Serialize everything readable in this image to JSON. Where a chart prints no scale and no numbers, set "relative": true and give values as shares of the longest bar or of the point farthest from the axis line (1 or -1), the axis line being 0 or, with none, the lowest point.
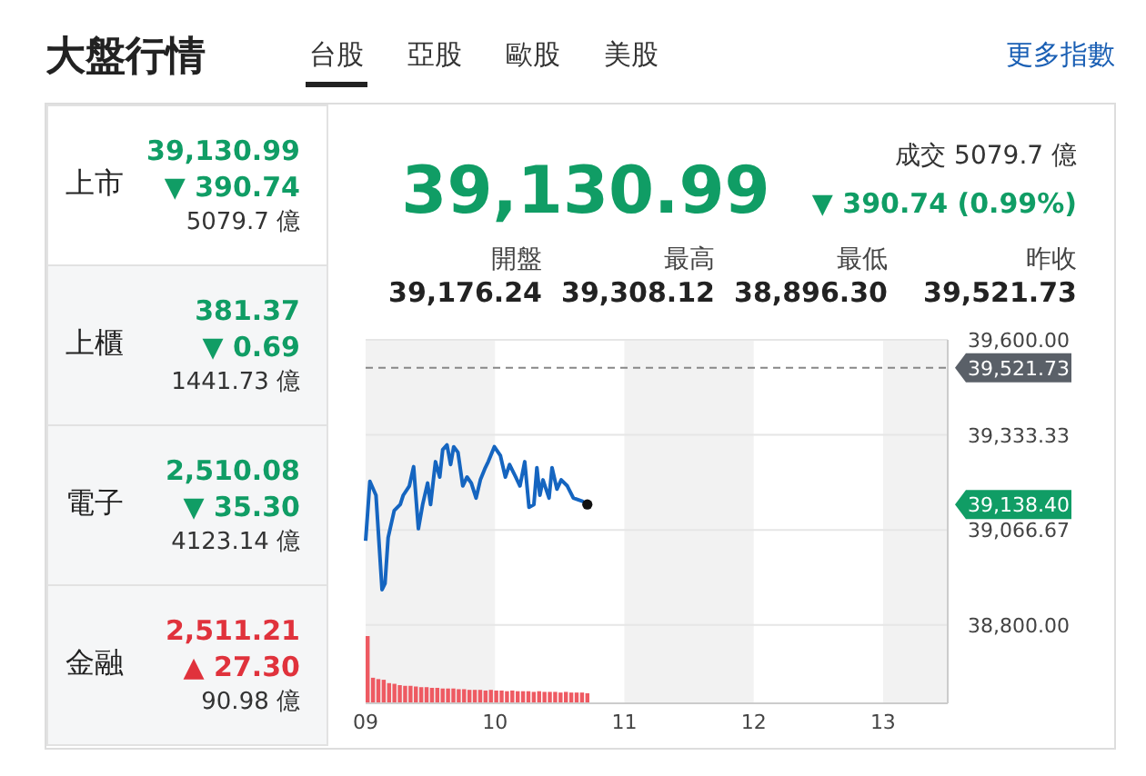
{
  "chart_data": [
    {
      "type": "other",
      "title": "大盤行情",
      "annotations": [
        "台股",
        "亞股",
        "歐股",
        "美股",
        "更多指數"
      ]
    },
    {
      "type": "other",
      "annotations": [
        "上市",
        "39,130.99",
        "▼ 390.74",
        "5079.7 億",
        "上櫃",
        "381.37",
        "▼ 0.69",
        "1441.73 億",
        "電子",
        "2,510.08",
        "▼ 35.30",
        "4123.14 億",
        "金融",
        "2,511.21",
        "▲ 27.30",
        "90.98 億"
      ],
      "colors": [
        "#109d65",
        "#109d65",
        "#109d65",
        "#e0323c"
      ]
    },
    {
      "type": "line",
      "title": "39,130.99",
      "annotations": [
        "成交 5079.7 億",
        "▼ 390.74 (0.99%)",
        "開盤",
        "39,176.24",
        "最高",
        "39,308.12",
        "最低",
        "38,896.30",
        "昨收",
        "39,521.73",
        "39,138.40"
      ],
      "x": [
        9.0,
        9.033,
        9.08,
        9.127,
        9.15,
        9.174,
        9.221,
        9.268,
        9.291,
        9.338,
        9.371,
        9.408,
        9.441,
        9.479,
        9.502,
        9.54,
        9.573,
        9.596,
        9.629,
        9.657,
        9.681,
        9.714,
        9.751,
        9.784,
        9.817,
        9.854,
        9.887,
        9.925,
        9.948,
        9.995,
        10.042,
        10.08,
        10.113,
        10.16,
        10.193,
        10.23,
        10.263,
        10.301,
        10.324,
        10.347,
        10.371,
        10.418,
        10.441,
        10.479,
        10.512,
        10.559,
        10.606,
        10.676,
        10.714
      ],
      "series": [
        {
          "color": "#1565c0",
          "values": [
            39036,
            39203,
            39164,
            38899,
            38916,
            39045,
            39121,
            39138,
            39164,
            39190,
            39244,
            39070,
            39138,
            39198,
            39138,
            39258,
            39215,
            39292,
            39305,
            39250,
            39300,
            39284,
            39190,
            39215,
            39198,
            39156,
            39207,
            39241,
            39258,
            39300,
            39275,
            39215,
            39250,
            39215,
            39190,
            39258,
            39130,
            39138,
            39241,
            39164,
            39207,
            39156,
            39241,
            39181,
            39207,
            39190,
            39156,
            39147,
            39138
          ]
        }
      ],
      "xlim": [
        9,
        13.5
      ],
      "ylim": [
        38580,
        39600
      ],
      "xticks": [
        {
          "value": 9,
          "label": "09"
        },
        10,
        11,
        12,
        13
      ],
      "yticks": [
        {
          "value": 39600,
          "label": "39,600.00"
        },
        {
          "value": 39333.33,
          "label": "39,333.33"
        },
        {
          "value": 39066.67,
          "label": "39,066.67"
        },
        {
          "value": 38800,
          "label": "38,800.00"
        }
      ],
      "grid": "y",
      "ref_lines": [
        {
          "axis": "y",
          "value": 39521.73,
          "label": "39,521.73",
          "color": "#888888",
          "line_style": "dashed"
        }
      ],
      "bands": [
        {
          "axis": "x",
          "from": 9,
          "to": 10,
          "color": "#f2f2f2"
        },
        {
          "axis": "x",
          "from": 11,
          "to": 12,
          "color": "#f2f2f2"
        },
        {
          "axis": "x",
          "from": 13,
          "to": 13.5,
          "color": "#f2f2f2"
        }
      ]
    },
    {
      "type": "bar",
      "relative": true,
      "color": "#ee5a62",
      "categories": [
        null,
        null,
        null,
        null,
        null,
        null,
        null,
        null,
        null,
        null,
        null,
        null,
        null,
        null,
        null,
        null,
        null,
        null,
        null,
        null,
        null,
        null,
        null,
        null,
        null,
        null,
        null,
        null,
        null,
        null,
        null,
        null,
        null,
        null,
        null,
        null,
        null,
        null,
        null,
        null,
        null,
        null
      ],
      "values": [
        1,
        0.38,
        0.36,
        0.35,
        0.3,
        0.29,
        0.27,
        0.26,
        0.26,
        0.25,
        0.24,
        0.24,
        0.23,
        0.23,
        0.22,
        0.22,
        0.22,
        0.21,
        0.21,
        0.2,
        0.2,
        0.2,
        0.19,
        0.2,
        0.19,
        0.19,
        0.18,
        0.19,
        0.18,
        0.18,
        0.18,
        0.17,
        0.18,
        0.17,
        0.17,
        0.17,
        0.16,
        0.17,
        0.16,
        0.16,
        0.16,
        0.15
      ]
    }
  ]
}
